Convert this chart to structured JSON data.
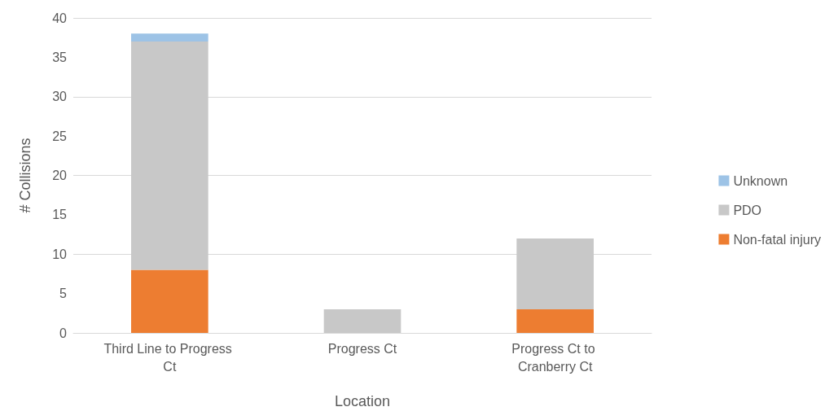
{
  "chart_data": {
    "type": "bar",
    "stacked": true,
    "xlabel": "Location",
    "ylabel": "# Collisions",
    "categories": [
      "Third Line to Progress Ct",
      "Progress Ct",
      "Progress Ct to Cranberry Ct"
    ],
    "series": [
      {
        "name": "Non-fatal injury",
        "color": "#ed7d31",
        "values": [
          8,
          0,
          3
        ]
      },
      {
        "name": "PDO",
        "color": "#c8c8c8",
        "values": [
          29,
          3,
          9
        ]
      },
      {
        "name": "Unknown",
        "color": "#9dc3e6",
        "values": [
          1,
          0,
          0
        ]
      }
    ],
    "ylim": [
      0,
      40
    ],
    "yticks": [
      0,
      5,
      10,
      15,
      20,
      25,
      30,
      35,
      40
    ],
    "grid": "y",
    "legend": "right"
  }
}
